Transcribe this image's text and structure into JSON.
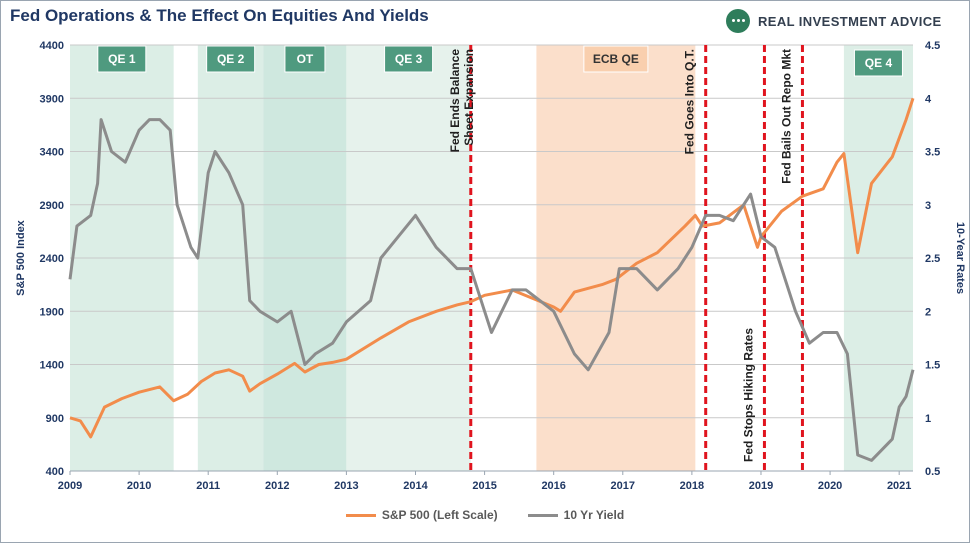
{
  "title": "Fed Operations & The Effect On Equities And Yields",
  "brand": {
    "name": "REAL INVESTMENT ADVICE",
    "logo_icon": "chat-bubble-icon",
    "color": "#2e7d5b"
  },
  "chart_data": {
    "type": "line",
    "title": "Fed Operations & The Effect On Equities And Yields",
    "xlabel": "",
    "ylabel": "S&P 500 Index",
    "y2label": "10-Year Rates",
    "xlim": [
      2009,
      2021.2
    ],
    "ylim": [
      400,
      4400
    ],
    "y2lim": [
      0.5,
      4.5
    ],
    "x_ticks": [
      "2009",
      "2010",
      "2011",
      "2012",
      "2013",
      "2014",
      "2015",
      "2016",
      "2017",
      "2018",
      "2019",
      "2020",
      "2021"
    ],
    "y_ticks": [
      "400",
      "900",
      "1400",
      "1900",
      "2400",
      "2900",
      "3400",
      "3900",
      "4400"
    ],
    "y2_ticks": [
      "0.5",
      "1",
      "1.5",
      "2",
      "2.5",
      "3",
      "3.5",
      "4",
      "4.5"
    ],
    "grid": true,
    "legend_position": "bottom",
    "shaded_regions": [
      {
        "label": "QE 1",
        "x0": 2009.0,
        "x1": 2010.5,
        "color": "#dceee6",
        "label_bg": "#4f9a7f"
      },
      {
        "label": "QE 2",
        "x0": 2010.85,
        "x1": 2011.8,
        "color": "#dceee6",
        "label_bg": "#4f9a7f"
      },
      {
        "label": "OT",
        "x0": 2011.8,
        "x1": 2013.0,
        "color": "#cfe8df",
        "label_bg": "#4f9a7f"
      },
      {
        "label": "QE 3",
        "x0": 2013.0,
        "x1": 2014.8,
        "color": "#e6f2ec",
        "label_bg": "#4f9a7f"
      },
      {
        "label": "ECB QE",
        "x0": 2015.75,
        "x1": 2018.05,
        "color": "#fbdfcb",
        "label_bg": "#f9cfae"
      },
      {
        "label": "QE 4",
        "x0": 2020.2,
        "x1": 2021.2,
        "color": "#dceee6",
        "label_bg": "#4f9a7f"
      }
    ],
    "event_lines": [
      {
        "x": 2014.8,
        "label": "Fed Ends Balance Sheet Expansion",
        "label_top": true
      },
      {
        "x": 2018.2,
        "label": "Fed Goes Into Q.T.",
        "label_top": true
      },
      {
        "x": 2019.05,
        "label": "Fed Stops Hiking Rates",
        "label_top": false
      },
      {
        "x": 2019.6,
        "label": "Fed Bails Out Repo Mkt",
        "label_top": true
      }
    ],
    "series": [
      {
        "name": "S&P 500 (Left Scale)",
        "axis": "left",
        "color": "#f28c4b",
        "x": [
          2009.0,
          2009.15,
          2009.3,
          2009.5,
          2009.75,
          2010.0,
          2010.3,
          2010.5,
          2010.7,
          2010.9,
          2011.1,
          2011.3,
          2011.5,
          2011.6,
          2011.75,
          2012.0,
          2012.25,
          2012.4,
          2012.6,
          2012.8,
          2013.0,
          2013.5,
          2013.9,
          2014.3,
          2014.6,
          2014.8,
          2015.0,
          2015.4,
          2015.7,
          2016.0,
          2016.1,
          2016.3,
          2016.7,
          2016.9,
          2017.2,
          2017.5,
          2017.9,
          2018.05,
          2018.15,
          2018.4,
          2018.75,
          2018.95,
          2019.0,
          2019.3,
          2019.6,
          2019.9,
          2020.1,
          2020.2,
          2020.4,
          2020.6,
          2020.9,
          2021.1,
          2021.2
        ],
        "values": [
          900,
          870,
          720,
          1000,
          1080,
          1140,
          1190,
          1060,
          1120,
          1240,
          1320,
          1350,
          1290,
          1150,
          1220,
          1310,
          1410,
          1330,
          1400,
          1420,
          1450,
          1650,
          1800,
          1900,
          1960,
          1990,
          2050,
          2100,
          2020,
          1940,
          1900,
          2080,
          2150,
          2200,
          2350,
          2450,
          2700,
          2800,
          2700,
          2730,
          2900,
          2500,
          2600,
          2840,
          2980,
          3050,
          3300,
          3380,
          2450,
          3100,
          3350,
          3700,
          3900
        ]
      },
      {
        "name": "10 Yr Yield",
        "axis": "right",
        "color": "#8c8c8c",
        "x": [
          2009.0,
          2009.1,
          2009.3,
          2009.4,
          2009.45,
          2009.6,
          2009.8,
          2010.0,
          2010.15,
          2010.3,
          2010.45,
          2010.55,
          2010.75,
          2010.85,
          2011.0,
          2011.1,
          2011.3,
          2011.5,
          2011.6,
          2011.75,
          2012.0,
          2012.2,
          2012.4,
          2012.55,
          2012.8,
          2013.0,
          2013.35,
          2013.5,
          2013.75,
          2014.0,
          2014.3,
          2014.6,
          2014.8,
          2015.0,
          2015.1,
          2015.4,
          2015.6,
          2015.8,
          2016.0,
          2016.3,
          2016.5,
          2016.8,
          2016.95,
          2017.2,
          2017.5,
          2017.8,
          2018.0,
          2018.2,
          2018.4,
          2018.6,
          2018.85,
          2019.0,
          2019.2,
          2019.5,
          2019.7,
          2019.9,
          2020.1,
          2020.25,
          2020.4,
          2020.6,
          2020.9,
          2021.0,
          2021.1,
          2021.2
        ],
        "values": [
          2.3,
          2.8,
          2.9,
          3.2,
          3.8,
          3.5,
          3.4,
          3.7,
          3.8,
          3.8,
          3.7,
          3.0,
          2.6,
          2.5,
          3.3,
          3.5,
          3.3,
          3.0,
          2.1,
          2.0,
          1.9,
          2.0,
          1.5,
          1.6,
          1.7,
          1.9,
          2.1,
          2.5,
          2.7,
          2.9,
          2.6,
          2.4,
          2.4,
          2.0,
          1.8,
          2.2,
          2.2,
          2.1,
          2.0,
          1.6,
          1.45,
          1.8,
          2.4,
          2.4,
          2.2,
          2.4,
          2.6,
          2.9,
          2.9,
          2.85,
          3.1,
          2.7,
          2.6,
          2.0,
          1.7,
          1.8,
          1.8,
          1.6,
          0.65,
          0.6,
          0.8,
          1.1,
          1.2,
          1.45
        ]
      }
    ]
  }
}
